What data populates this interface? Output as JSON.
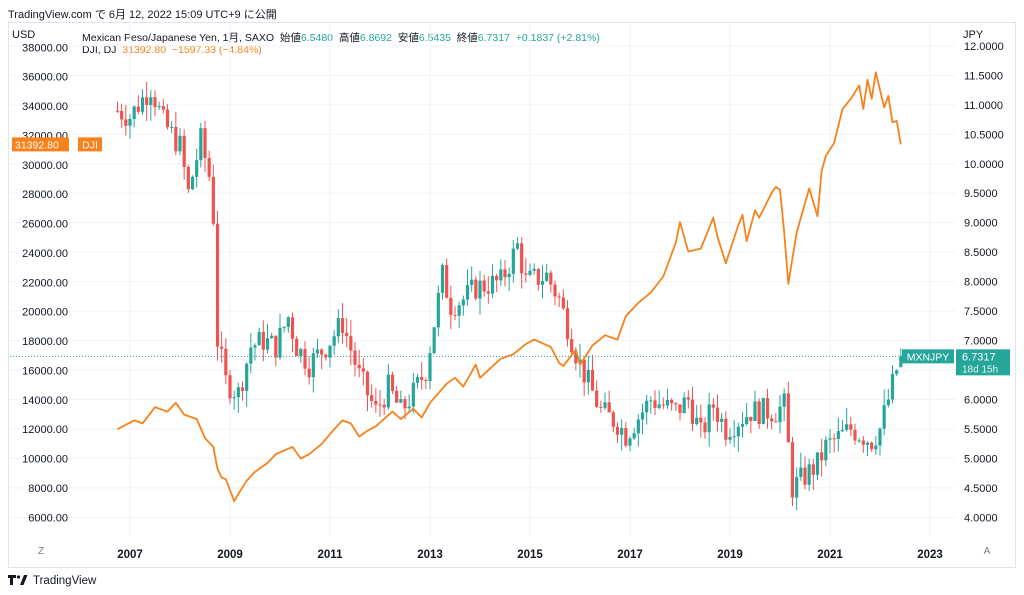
{
  "header": {
    "text": "TradingView.com で 6月 12, 2022 15:09 UTC+9 に公開"
  },
  "footer": {
    "brand": "TradingView",
    "logo_icon": "tradingview-logo-icon"
  },
  "left_unit": "USD",
  "right_unit": "JPY",
  "left_axis_button": "Z",
  "right_axis_button": "A",
  "legend": {
    "main": {
      "name": "Mexican Peso/Japanese Yen, 1月, SAXO",
      "open_label": "始値",
      "open": "6.5480",
      "high_label": "高値",
      "high": "6.8692",
      "low_label": "安値",
      "low": "6.5435",
      "close_label": "終値",
      "close": "6.7317",
      "change": "+0.1837 (+2.81%)"
    },
    "dji": {
      "name": "DJI, DJ",
      "value": "31392.80",
      "change": "−1597.33 (−4.84%)"
    }
  },
  "colors": {
    "up": "#26a69a",
    "down": "#ef5350",
    "dji_line": "#f7821b",
    "accent": "#26a69a"
  },
  "chart_data": [
    {
      "type": "candlestick",
      "series_name": "Mexican Peso/Japanese Yen, 1月, SAXO",
      "axis": "right",
      "ylim": [
        3.7,
        12.1
      ],
      "y_ticks": [
        "4.0000",
        "4.5000",
        "5.0000",
        "5.5000",
        "6.0000",
        "6.5000",
        "7.0000",
        "7.5000",
        "8.0000",
        "8.5000",
        "9.0000",
        "9.5000",
        "10.0000",
        "10.5000",
        "11.0000",
        "11.5000",
        "12.0000"
      ],
      "price_label": {
        "name": "MXNJPY",
        "value": "6.7317",
        "countdown": "18d 15h"
      },
      "x_ticks": [
        "2007",
        "2009",
        "2011",
        "2013",
        "2015",
        "2017",
        "2019",
        "2021",
        "2023"
      ],
      "anchors": [
        [
          "2006-10",
          10.9
        ],
        [
          "2007-01",
          10.8
        ],
        [
          "2007-06",
          11.3
        ],
        [
          "2007-09",
          10.7
        ],
        [
          "2008-01",
          10.3
        ],
        [
          "2008-03",
          9.5
        ],
        [
          "2008-06",
          10.4
        ],
        [
          "2008-08",
          9.8
        ],
        [
          "2008-09",
          9.1
        ],
        [
          "2008-10",
          7.0
        ],
        [
          "2008-12",
          6.3
        ],
        [
          "2009-03",
          6.1
        ],
        [
          "2009-06",
          6.9
        ],
        [
          "2009-09",
          7.0
        ],
        [
          "2009-12",
          6.9
        ],
        [
          "2010-03",
          7.4
        ],
        [
          "2010-05",
          6.9
        ],
        [
          "2010-08",
          6.6
        ],
        [
          "2010-12",
          6.9
        ],
        [
          "2011-04",
          7.3
        ],
        [
          "2011-08",
          6.4
        ],
        [
          "2011-12",
          5.8
        ],
        [
          "2012-03",
          6.2
        ],
        [
          "2012-06",
          5.8
        ],
        [
          "2012-09",
          6.1
        ],
        [
          "2012-12",
          6.5
        ],
        [
          "2013-04",
          8.1
        ],
        [
          "2013-06",
          7.6
        ],
        [
          "2013-09",
          7.7
        ],
        [
          "2013-12",
          7.9
        ],
        [
          "2014-06",
          8.0
        ],
        [
          "2014-10",
          8.6
        ],
        [
          "2014-12",
          8.0
        ],
        [
          "2015-05",
          8.1
        ],
        [
          "2015-08",
          7.7
        ],
        [
          "2015-12",
          6.8
        ],
        [
          "2016-01",
          6.6
        ],
        [
          "2016-06",
          5.8
        ],
        [
          "2016-10",
          5.6
        ],
        [
          "2016-12",
          5.4
        ],
        [
          "2017-06",
          6.0
        ],
        [
          "2017-12",
          5.8
        ],
        [
          "2018-03",
          6.0
        ],
        [
          "2018-06",
          5.4
        ],
        [
          "2018-09",
          5.9
        ],
        [
          "2018-12",
          5.5
        ],
        [
          "2019-06",
          5.8
        ],
        [
          "2019-12",
          5.8
        ],
        [
          "2020-02",
          5.9
        ],
        [
          "2020-04",
          4.5
        ],
        [
          "2020-10",
          4.9
        ],
        [
          "2020-12",
          5.2
        ],
        [
          "2021-06",
          5.5
        ],
        [
          "2021-11",
          5.3
        ],
        [
          "2022-01",
          5.5
        ],
        [
          "2022-03",
          6.0
        ],
        [
          "2022-05",
          6.5
        ],
        [
          "2022-06",
          6.7317
        ]
      ],
      "last_candle": {
        "open": 6.548,
        "high": 6.8692,
        "low": 6.5435,
        "close": 6.7317
      }
    },
    {
      "type": "line",
      "series_name": "DJI, DJ",
      "axis": "left",
      "ylim": [
        4800,
        38500
      ],
      "y_ticks": [
        "6000.00",
        "8000.00",
        "10000.00",
        "12000.00",
        "14000.00",
        "16000.00",
        "18000.00",
        "20000.00",
        "22000.00",
        "24000.00",
        "26000.00",
        "28000.00",
        "30000.00",
        "32000.00",
        "34000.00",
        "36000.00",
        "38000.00"
      ],
      "price_label": {
        "value": "31392.80",
        "name": "DJI"
      },
      "points": [
        [
          "2006-10",
          12000
        ],
        [
          "2007-02",
          12600
        ],
        [
          "2007-04",
          12400
        ],
        [
          "2007-07",
          13500
        ],
        [
          "2007-10",
          13200
        ],
        [
          "2007-12",
          13800
        ],
        [
          "2008-02",
          13000
        ],
        [
          "2008-05",
          12700
        ],
        [
          "2008-07",
          11400
        ],
        [
          "2008-09",
          10800
        ],
        [
          "2008-10",
          9300
        ],
        [
          "2008-11",
          8700
        ],
        [
          "2008-12",
          8600
        ],
        [
          "2009-02",
          7100
        ],
        [
          "2009-03",
          7600
        ],
        [
          "2009-05",
          8500
        ],
        [
          "2009-07",
          9100
        ],
        [
          "2009-10",
          9700
        ],
        [
          "2009-12",
          10300
        ],
        [
          "2010-04",
          10800
        ],
        [
          "2010-06",
          10000
        ],
        [
          "2010-08",
          10300
        ],
        [
          "2010-11",
          11000
        ],
        [
          "2011-02",
          12000
        ],
        [
          "2011-04",
          12600
        ],
        [
          "2011-06",
          12400
        ],
        [
          "2011-08",
          11500
        ],
        [
          "2011-10",
          11900
        ],
        [
          "2011-12",
          12200
        ],
        [
          "2012-04",
          13200
        ],
        [
          "2012-06",
          12700
        ],
        [
          "2012-09",
          13400
        ],
        [
          "2012-11",
          12800
        ],
        [
          "2013-01",
          13800
        ],
        [
          "2013-05",
          15100
        ],
        [
          "2013-07",
          15500
        ],
        [
          "2013-09",
          14900
        ],
        [
          "2013-12",
          16400
        ],
        [
          "2014-01",
          15500
        ],
        [
          "2014-06",
          16800
        ],
        [
          "2014-09",
          17100
        ],
        [
          "2014-12",
          17800
        ],
        [
          "2015-02",
          18100
        ],
        [
          "2015-06",
          17600
        ],
        [
          "2015-08",
          16500
        ],
        [
          "2015-09",
          16300
        ],
        [
          "2015-12",
          17400
        ],
        [
          "2016-01",
          16400
        ],
        [
          "2016-04",
          17700
        ],
        [
          "2016-07",
          18400
        ],
        [
          "2016-10",
          18100
        ],
        [
          "2016-12",
          19700
        ],
        [
          "2017-03",
          20600
        ],
        [
          "2017-06",
          21300
        ],
        [
          "2017-09",
          22400
        ],
        [
          "2017-12",
          24700
        ],
        [
          "2018-01",
          26100
        ],
        [
          "2018-03",
          24100
        ],
        [
          "2018-06",
          24300
        ],
        [
          "2018-09",
          26400
        ],
        [
          "2018-10",
          25100
        ],
        [
          "2018-12",
          23300
        ],
        [
          "2019-03",
          25900
        ],
        [
          "2019-04",
          26600
        ],
        [
          "2019-05",
          24800
        ],
        [
          "2019-07",
          26900
        ],
        [
          "2019-08",
          26400
        ],
        [
          "2019-11",
          28100
        ],
        [
          "2019-12",
          28500
        ],
        [
          "2020-01",
          28300
        ],
        [
          "2020-02",
          25400
        ],
        [
          "2020-03",
          21900
        ],
        [
          "2020-05",
          25400
        ],
        [
          "2020-08",
          28400
        ],
        [
          "2020-10",
          26500
        ],
        [
          "2020-11",
          29600
        ],
        [
          "2020-12",
          30600
        ],
        [
          "2021-02",
          31500
        ],
        [
          "2021-04",
          33800
        ],
        [
          "2021-06",
          34500
        ],
        [
          "2021-08",
          35400
        ],
        [
          "2021-09",
          33800
        ],
        [
          "2021-10",
          35800
        ],
        [
          "2021-11",
          34500
        ],
        [
          "2021-12",
          36300
        ],
        [
          "2022-02",
          33900
        ],
        [
          "2022-03",
          34700
        ],
        [
          "2022-04",
          32900
        ],
        [
          "2022-05",
          32990
        ],
        [
          "2022-06",
          31392.8
        ]
      ]
    }
  ]
}
